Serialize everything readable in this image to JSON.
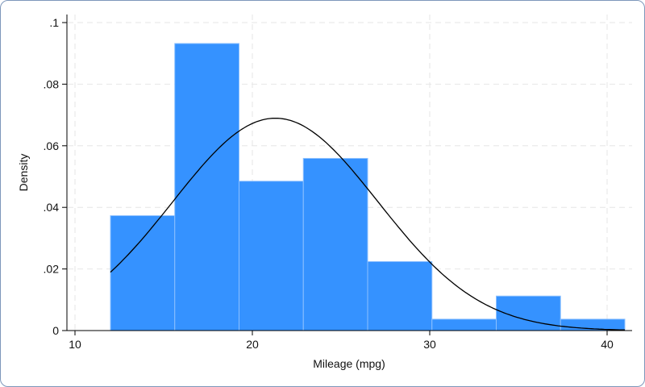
{
  "chart_data": {
    "type": "bar",
    "subtype": "histogram-with-normal-density",
    "title": "",
    "xlabel": "Mileage (mpg)",
    "ylabel": "Density",
    "xlim": [
      10,
      41
    ],
    "ylim": [
      0,
      0.1
    ],
    "xticks": [
      10,
      20,
      30,
      40
    ],
    "xtick_labels": [
      "10",
      "20",
      "30",
      "40"
    ],
    "yticks": [
      0,
      0.02,
      0.04,
      0.06,
      0.08,
      0.1
    ],
    "ytick_labels": [
      "0",
      ".02",
      ".04",
      ".06",
      ".08",
      ".1"
    ],
    "grid": true,
    "bin_edges": [
      12,
      15.625,
      19.25,
      22.875,
      26.5,
      30.125,
      33.75,
      37.375,
      41
    ],
    "values": [
      0.0373,
      0.0932,
      0.0485,
      0.0559,
      0.0224,
      0.0037,
      0.0112,
      0.0037
    ],
    "normal_curve": {
      "mean": 21.297,
      "sd": 5.7855,
      "range": [
        12,
        41
      ]
    },
    "colors": {
      "bar": "#3592ff",
      "bar_edge": "#8cc0ff",
      "curve": "#000000",
      "grid": "#e6e6e6"
    }
  }
}
